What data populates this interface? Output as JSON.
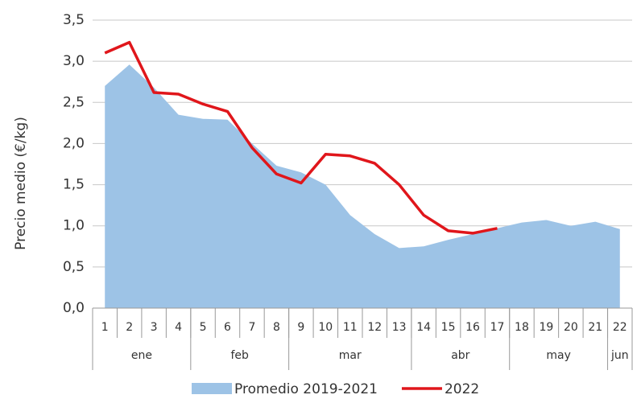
{
  "chart_data": {
    "type": "area-line",
    "ylabel": "Precio medio (€/kg)",
    "categories": [
      "1",
      "2",
      "3",
      "4",
      "5",
      "6",
      "7",
      "8",
      "9",
      "10",
      "11",
      "12",
      "13",
      "14",
      "15",
      "16",
      "17",
      "18",
      "19",
      "20",
      "21",
      "22"
    ],
    "groups": [
      {
        "label": "ene",
        "span": 4
      },
      {
        "label": "feb",
        "span": 4
      },
      {
        "label": "mar",
        "span": 5
      },
      {
        "label": "abr",
        "span": 4
      },
      {
        "label": "may",
        "span": 4
      },
      {
        "label": "jun",
        "span": 1
      }
    ],
    "series": [
      {
        "name": "Promedio 2019-2021",
        "kind": "area",
        "color": "#9dc3e6",
        "values": [
          2.7,
          2.96,
          2.68,
          2.35,
          2.3,
          2.29,
          2.0,
          1.73,
          1.65,
          1.5,
          1.13,
          0.9,
          0.73,
          0.75,
          0.83,
          0.9,
          0.97,
          1.04,
          1.07,
          1.0,
          1.05,
          0.96
        ]
      },
      {
        "name": "2022",
        "kind": "line",
        "color": "#e0161b",
        "values": [
          3.1,
          3.23,
          2.62,
          2.6,
          2.48,
          2.39,
          1.95,
          1.63,
          1.52,
          1.87,
          1.85,
          1.76,
          1.5,
          1.13,
          0.94,
          0.91,
          0.97,
          null,
          null,
          null,
          null,
          null
        ]
      }
    ],
    "ylim": [
      0,
      3.5
    ],
    "yticks": [
      {
        "value": 0,
        "label": "0,0"
      },
      {
        "value": 0.5,
        "label": "0,5"
      },
      {
        "value": 1,
        "label": "1,0"
      },
      {
        "value": 1.5,
        "label": "1,5"
      },
      {
        "value": 2,
        "label": "2,0"
      },
      {
        "value": 2.5,
        "label": "2,5"
      },
      {
        "value": 3,
        "label": "3,0"
      },
      {
        "value": 3.5,
        "label": "3,5"
      }
    ],
    "grid": true,
    "legend": "bottom"
  }
}
